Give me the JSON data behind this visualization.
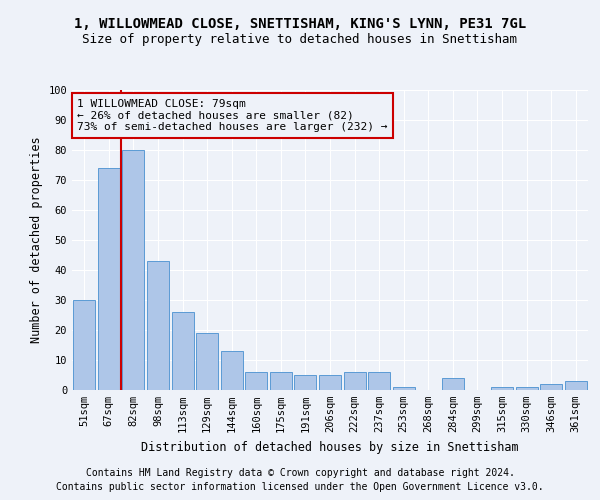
{
  "title_line1": "1, WILLOWMEAD CLOSE, SNETTISHAM, KING'S LYNN, PE31 7GL",
  "title_line2": "Size of property relative to detached houses in Snettisham",
  "xlabel": "Distribution of detached houses by size in Snettisham",
  "ylabel": "Number of detached properties",
  "categories": [
    "51sqm",
    "67sqm",
    "82sqm",
    "98sqm",
    "113sqm",
    "129sqm",
    "144sqm",
    "160sqm",
    "175sqm",
    "191sqm",
    "206sqm",
    "222sqm",
    "237sqm",
    "253sqm",
    "268sqm",
    "284sqm",
    "299sqm",
    "315sqm",
    "330sqm",
    "346sqm",
    "361sqm"
  ],
  "values": [
    30,
    74,
    80,
    43,
    26,
    19,
    13,
    6,
    6,
    5,
    5,
    6,
    6,
    1,
    0,
    4,
    0,
    1,
    1,
    2,
    3
  ],
  "bar_color": "#aec6e8",
  "bar_edgecolor": "#5b9bd5",
  "highlight_color": "#cc0000",
  "annotation_line1": "1 WILLOWMEAD CLOSE: 79sqm",
  "annotation_line2": "← 26% of detached houses are smaller (82)",
  "annotation_line3": "73% of semi-detached houses are larger (232) →",
  "annotation_box_edgecolor": "#cc0000",
  "ylim": [
    0,
    100
  ],
  "yticks": [
    0,
    10,
    20,
    30,
    40,
    50,
    60,
    70,
    80,
    90,
    100
  ],
  "footer_line1": "Contains HM Land Registry data © Crown copyright and database right 2024.",
  "footer_line2": "Contains public sector information licensed under the Open Government Licence v3.0.",
  "background_color": "#eef2f9",
  "grid_color": "#ffffff",
  "title_fontsize": 10,
  "subtitle_fontsize": 9,
  "axis_label_fontsize": 8.5,
  "tick_fontsize": 7.5,
  "annotation_fontsize": 8,
  "footer_fontsize": 7
}
